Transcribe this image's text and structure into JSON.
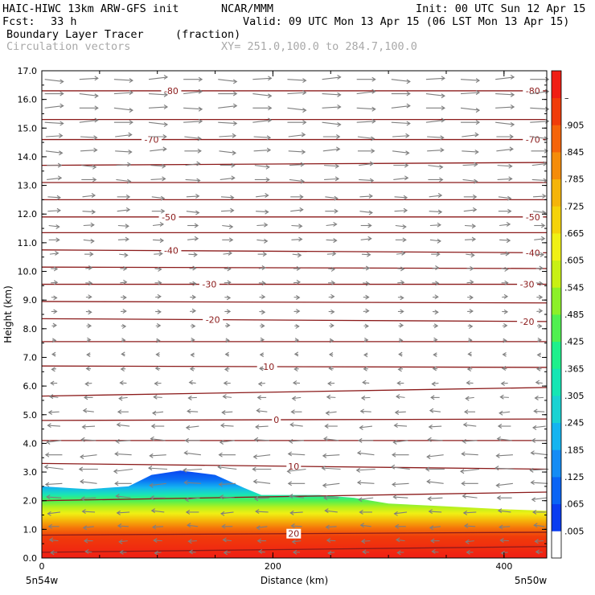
{
  "header": {
    "model": "HAIC-HIWC 13km ARW-GFS init",
    "org": "NCAR/MMM",
    "init": "Init: 00 UTC Sun 12 Apr 15",
    "fcst_label": "Fcst:",
    "fcst_value": "33 h",
    "valid": "Valid: 09 UTC Mon 13 Apr 15 (06 LST Mon 13 Apr 15)",
    "field": "Boundary Layer Tracer",
    "units": "(fraction)",
    "vectors": "Circulation vectors",
    "xsection": "XY= 251.0,100.0 to 284.7,100.0"
  },
  "chart_data": {
    "type": "heatmap",
    "xlabel": "Distance (km)",
    "ylabel": "Height (km)",
    "xlim": [
      0,
      437
    ],
    "ylim": [
      0,
      17
    ],
    "x_ticks": [
      "0",
      "200",
      "400"
    ],
    "y_ticks": [
      "0.0",
      "1.0",
      "2.0",
      "3.0",
      "4.0",
      "5.0",
      "6.0",
      "7.0",
      "8.0",
      "9.0",
      "10.0",
      "11.0",
      "12.0",
      "13.0",
      "14.0",
      "15.0",
      "16.0",
      "17.0"
    ],
    "x_endpoints": {
      "left": "5n54w",
      "right": "5n50w"
    },
    "colorbar": {
      "labels": [
        ".005",
        ".065",
        ".125",
        ".185",
        ".245",
        ".305",
        ".365",
        ".425",
        ".485",
        ".545",
        ".605",
        ".665",
        ".725",
        ".785",
        ".845",
        ".905",
        "–"
      ],
      "colors": [
        "#ffffff",
        "#0a3cf0",
        "#0a64f5",
        "#148cf5",
        "#14b4f0",
        "#19d2d2",
        "#14e6b4",
        "#1ef08c",
        "#50f050",
        "#8cf028",
        "#c8f014",
        "#f0f014",
        "#f5d20a",
        "#f5b40a",
        "#f58c0a",
        "#f5640a",
        "#f03c0a",
        "#f01e14"
      ]
    },
    "tracer_top_km": [
      {
        "x": 0,
        "top": 2.5
      },
      {
        "x": 40,
        "top": 2.4
      },
      {
        "x": 75,
        "top": 2.5
      },
      {
        "x": 95,
        "top": 2.9
      },
      {
        "x": 120,
        "top": 3.05
      },
      {
        "x": 150,
        "top": 2.9
      },
      {
        "x": 175,
        "top": 2.45
      },
      {
        "x": 190,
        "top": 2.2
      },
      {
        "x": 240,
        "top": 2.2
      },
      {
        "x": 270,
        "top": 2.1
      },
      {
        "x": 300,
        "top": 1.9
      },
      {
        "x": 350,
        "top": 1.8
      },
      {
        "x": 400,
        "top": 1.7
      },
      {
        "x": 437,
        "top": 1.65
      }
    ],
    "temperature_contours": {
      "color": "#8b1a1a",
      "interval_c": 5,
      "lines": [
        {
          "value": -80,
          "y0": 16.3,
          "y1": 16.3,
          "labels": [
            {
              "text": "-80",
              "x": 112
            },
            {
              "text": "-80",
              "x": 425
            }
          ]
        },
        {
          "value": -75,
          "y0": 15.3,
          "y1": 15.3,
          "labels": []
        },
        {
          "value": -70,
          "y0": 14.6,
          "y1": 14.6,
          "labels": [
            {
              "text": "-70",
              "x": 95
            },
            {
              "text": "-70",
              "x": 425
            }
          ]
        },
        {
          "value": -65,
          "y0": 13.7,
          "y1": 13.8,
          "labels": []
        },
        {
          "value": -60,
          "y0": 13.1,
          "y1": 13.1,
          "labels": []
        },
        {
          "value": -55,
          "y0": 12.5,
          "y1": 12.5,
          "labels": []
        },
        {
          "value": -50,
          "y0": 11.9,
          "y1": 11.9,
          "labels": [
            {
              "text": "-50",
              "x": 110
            },
            {
              "text": "-50",
              "x": 425
            }
          ]
        },
        {
          "value": -45,
          "y0": 11.35,
          "y1": 11.35,
          "labels": []
        },
        {
          "value": -40,
          "y0": 10.75,
          "y1": 10.65,
          "labels": [
            {
              "text": "-40",
              "x": 112
            },
            {
              "text": "-40",
              "x": 425
            }
          ]
        },
        {
          "value": -35,
          "y0": 10.15,
          "y1": 10.1,
          "labels": []
        },
        {
          "value": -30,
          "y0": 9.55,
          "y1": 9.55,
          "labels": [
            {
              "text": "-30",
              "x": 145
            },
            {
              "text": "-30",
              "x": 420
            }
          ]
        },
        {
          "value": -25,
          "y0": 8.95,
          "y1": 8.9,
          "labels": []
        },
        {
          "value": -20,
          "y0": 8.35,
          "y1": 8.25,
          "labels": [
            {
              "text": "-20",
              "x": 148
            },
            {
              "text": "-20",
              "x": 420
            }
          ]
        },
        {
          "value": -15,
          "y0": 7.55,
          "y1": 7.55,
          "labels": []
        },
        {
          "value": -10,
          "y0": 6.7,
          "y1": 6.65,
          "labels": [
            {
              "text": "-10",
              "x": 195
            }
          ]
        },
        {
          "value": -5,
          "y0": 5.65,
          "y1": 5.95,
          "labels": []
        },
        {
          "value": 0,
          "y0": 4.8,
          "y1": 4.85,
          "labels": [
            {
              "text": "0",
              "x": 203
            }
          ]
        },
        {
          "value": 5,
          "y0": 4.1,
          "y1": 4.1,
          "labels": []
        },
        {
          "value": 10,
          "y0": 3.3,
          "y1": 3.1,
          "labels": [
            {
              "text": "10",
              "x": 218
            }
          ]
        },
        {
          "value": 15,
          "y0": 2.0,
          "y1": 2.3,
          "labels": []
        },
        {
          "value": 20,
          "y0": 0.8,
          "y1": 0.9,
          "labels": [
            {
              "text": "20",
              "x": 218
            }
          ]
        },
        {
          "value": 25,
          "y0": 0.2,
          "y1": 0.4,
          "labels": []
        }
      ]
    },
    "circulation_vectors": {
      "color": "#7f7f7f",
      "x_positions_km": [
        5,
        35,
        65,
        95,
        125,
        155,
        185,
        215,
        245,
        275,
        305,
        335,
        365,
        395,
        425
      ],
      "levels_km": [
        16.7,
        16.2,
        15.7,
        15.2,
        14.7,
        14.2,
        13.7,
        13.2,
        12.6,
        12.1,
        11.6,
        11.1,
        10.6,
        10.1,
        9.6,
        9.1,
        8.6,
        8.1,
        7.6,
        7.1,
        6.6,
        6.1,
        5.6,
        5.1,
        4.6,
        4.1,
        3.6,
        3.1,
        2.6,
        2.1,
        1.6,
        1.1,
        0.6,
        0.2
      ],
      "u_by_level": [
        8,
        8,
        8,
        8,
        7,
        7,
        6,
        6,
        5,
        5,
        4,
        4,
        3,
        2,
        2,
        1.5,
        1.5,
        1,
        0.5,
        -0.5,
        -1,
        -2,
        -3,
        -4,
        -5,
        -6,
        -7,
        -8,
        -7,
        -6,
        -5,
        -4,
        -3,
        -2
      ]
    }
  }
}
